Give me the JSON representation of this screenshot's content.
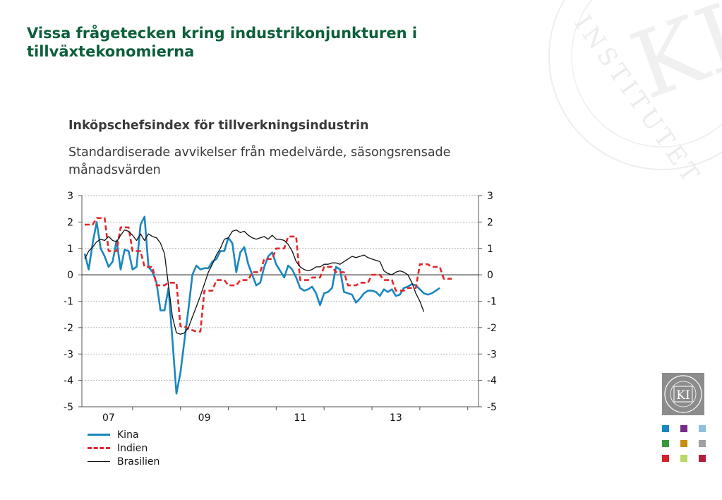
{
  "slide": {
    "title": "Vissa frågetecken kring industrikonjunkturen i tillväxtekonomierna"
  },
  "watermark": {
    "text": "INSTITUTET",
    "monogram": "KI",
    "seal_text": "KONJUNKTURINSTITUTET"
  },
  "colors": {
    "title": "#0c5f3a",
    "kina": "#1a86bf",
    "indien": "#e5262a",
    "brasilien": "#111111",
    "logo_bg": "#8c8c8c"
  },
  "chart_data": {
    "type": "line",
    "title": "Inköpschefsindex för tillverkningsindustrin",
    "subtitle": "Standardiserade avvikelser från medelvärde, säsongsrensade månadsvärden",
    "x_start_month": 0,
    "x_total_months": 98,
    "xticks": [
      "07",
      "09",
      "11",
      "13"
    ],
    "yticks": [
      "3",
      "2",
      "1",
      "0",
      "-1",
      "-2",
      "-3",
      "-4",
      "-5"
    ],
    "ylim": [
      -5,
      3
    ],
    "legend_position": "bottom-left",
    "grid": true,
    "series": [
      {
        "name": "Kina",
        "style": "solid",
        "values": [
          0.8,
          0.2,
          1.2,
          2.0,
          1.0,
          0.7,
          0.3,
          0.5,
          1.3,
          0.2,
          0.95,
          0.9,
          0.2,
          0.3,
          1.9,
          2.2,
          0.3,
          0.1,
          -0.3,
          -1.35,
          -1.35,
          -0.5,
          -2.5,
          -4.5,
          -3.7,
          -2.5,
          -1.3,
          0.0,
          0.35,
          0.2,
          0.25,
          0.25,
          0.5,
          0.6,
          0.9,
          0.9,
          1.4,
          1.2,
          0.1,
          0.85,
          1.05,
          0.4,
          0.0,
          -0.4,
          -0.3,
          0.3,
          0.7,
          0.85,
          0.4,
          0.15,
          -0.1,
          0.35,
          0.2,
          -0.1,
          -0.5,
          -0.6,
          -0.55,
          -0.45,
          -0.7,
          -1.15,
          -0.7,
          -0.65,
          -0.5,
          0.3,
          0.2,
          -0.65,
          -0.7,
          -0.75,
          -1.05,
          -0.9,
          -0.7,
          -0.6,
          -0.6,
          -0.65,
          -0.8,
          -0.55,
          -0.65,
          -0.55,
          -0.8,
          -0.75,
          -0.5,
          -0.45,
          -0.35,
          -0.4,
          -0.55,
          -0.7,
          -0.75,
          -0.7,
          -0.6,
          -0.5
        ]
      },
      {
        "name": "Indien",
        "style": "dashed",
        "values": [
          1.9,
          1.9,
          1.9,
          2.15,
          2.15,
          2.15,
          0.9,
          0.9,
          0.9,
          1.8,
          1.8,
          1.8,
          0.9,
          0.9,
          0.9,
          0.3,
          0.3,
          0.3,
          -0.4,
          -0.4,
          -0.4,
          -0.3,
          -0.3,
          -0.3,
          -1.95,
          -1.95,
          -2.05,
          -2.1,
          -2.15,
          -2.15,
          -0.6,
          -0.6,
          -0.6,
          -0.2,
          -0.2,
          -0.2,
          -0.4,
          -0.4,
          -0.4,
          -0.2,
          -0.2,
          -0.2,
          0.1,
          0.1,
          0.1,
          0.6,
          0.6,
          0.6,
          1.0,
          1.0,
          1.0,
          1.45,
          1.45,
          1.45,
          -0.2,
          -0.2,
          -0.2,
          -0.1,
          -0.1,
          -0.1,
          0.3,
          0.3,
          0.3,
          0.1,
          0.1,
          0.1,
          -0.4,
          -0.4,
          -0.4,
          -0.3,
          -0.3,
          -0.3,
          0.0,
          0.0,
          0.0,
          -0.2,
          -0.2,
          -0.2,
          -0.6,
          -0.6,
          -0.6,
          -0.5,
          -0.5,
          -0.5,
          0.4,
          0.4,
          0.4,
          0.3,
          0.3,
          0.3,
          -0.15,
          -0.15,
          -0.15
        ]
      },
      {
        "name": "Brasilien",
        "style": "solid-thin",
        "values": [
          0.6,
          0.9,
          1.05,
          1.25,
          1.35,
          1.3,
          1.45,
          1.3,
          1.25,
          1.5,
          1.7,
          1.65,
          1.5,
          1.3,
          1.55,
          1.3,
          1.55,
          1.45,
          1.4,
          1.2,
          0.8,
          -0.4,
          -1.6,
          -2.2,
          -2.25,
          -2.2,
          -2.0,
          -1.6,
          -1.2,
          -0.8,
          -0.35,
          0.1,
          0.4,
          0.75,
          1.0,
          1.35,
          1.4,
          1.65,
          1.7,
          1.6,
          1.65,
          1.5,
          1.4,
          1.35,
          1.4,
          1.45,
          1.35,
          1.5,
          1.35,
          1.35,
          1.3,
          1.15,
          0.9,
          0.5,
          0.3,
          0.2,
          0.15,
          0.2,
          0.3,
          0.3,
          0.4,
          0.4,
          0.45,
          0.45,
          0.4,
          0.5,
          0.6,
          0.7,
          0.65,
          0.7,
          0.75,
          0.65,
          0.6,
          0.55,
          0.5,
          0.15,
          0.05,
          0.0,
          0.1,
          0.15,
          0.1,
          0.0,
          -0.3,
          -0.7,
          -1.0,
          -1.4
        ]
      }
    ]
  }
}
